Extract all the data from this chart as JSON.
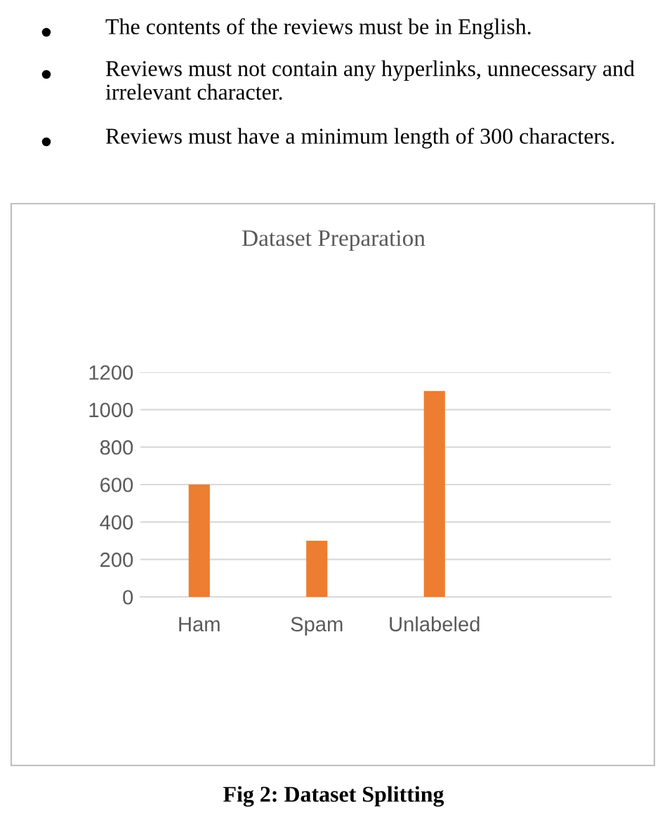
{
  "chart_data": {
    "type": "bar",
    "title": "Dataset Preparation",
    "categories": [
      "Ham",
      "Spam",
      "Unlabeled",
      null
    ],
    "values": [
      600,
      300,
      1100,
      null
    ],
    "color": "#ed7d31",
    "ylim": [
      0,
      1200
    ],
    "yticks": [
      0,
      200,
      400,
      600,
      800,
      1000,
      1200
    ],
    "grid": "y",
    "legend": false,
    "annotations": [
      "The contents of the reviews must be in English.",
      "Reviews must not contain any hyperlinks, unnecessary and irrelevant character.",
      "Reviews must have a minimum length of 300 characters.",
      "Fig 2: Dataset Splitting"
    ]
  }
}
